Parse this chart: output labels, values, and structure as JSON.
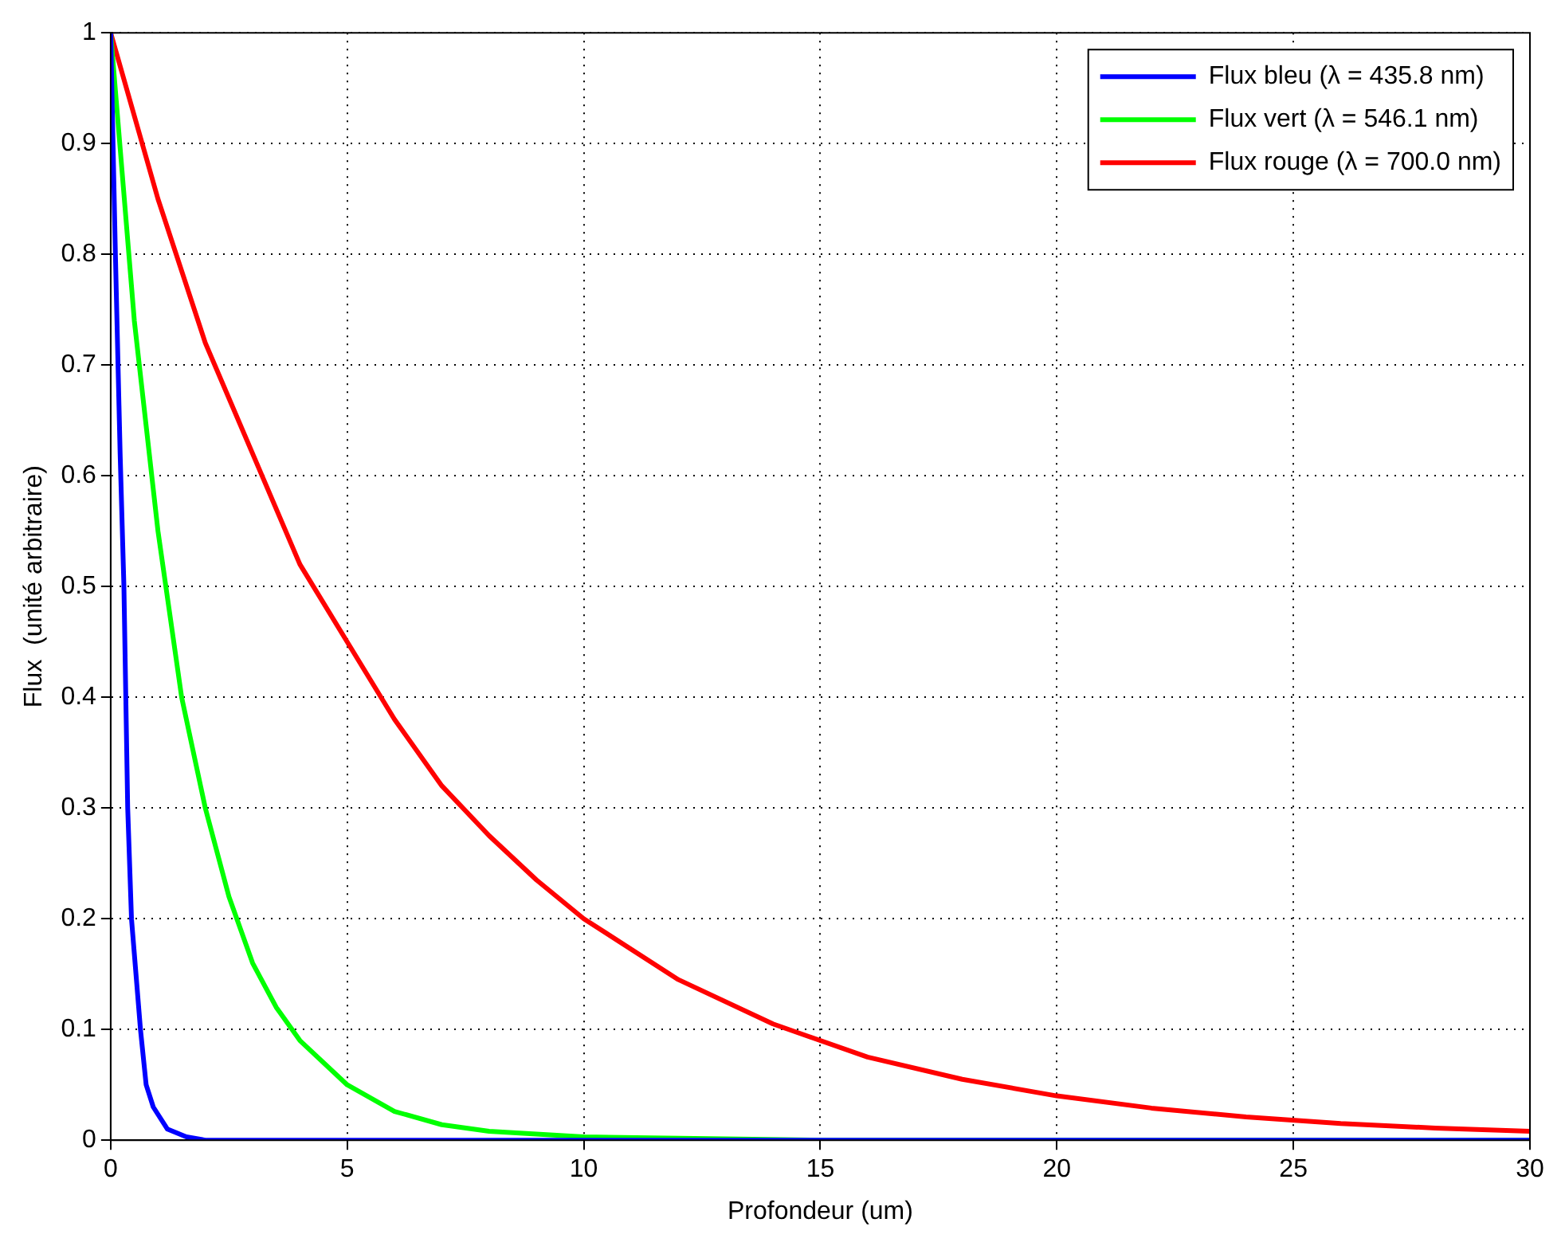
{
  "chart_data": {
    "type": "line",
    "xlabel": "Profondeur (um)",
    "ylabel": "Flux  (unité arbitraire)",
    "xlim": [
      0,
      30
    ],
    "xticks": [
      0,
      5,
      10,
      15,
      20,
      25,
      30
    ],
    "ylim": [
      0,
      1
    ],
    "yticks": [
      0,
      0.1,
      0.2,
      0.3,
      0.4,
      0.5,
      0.6,
      0.7,
      0.8,
      0.9,
      1
    ],
    "grid": true,
    "line_style": "solid",
    "marker": "none",
    "legend": "top right",
    "series": [
      {
        "name": "Flux bleu (λ = 435.8 nm)",
        "color": "#0000ff",
        "x": [
          0,
          0.1,
          0.2,
          0.28,
          0.36,
          0.44,
          0.63,
          0.75,
          0.9,
          1.2,
          1.6,
          2,
          10,
          30
        ],
        "values": [
          1,
          0.8,
          0.62,
          0.5,
          0.3,
          0.2,
          0.1,
          0.05,
          0.03,
          0.01,
          0.003,
          0,
          0,
          0
        ]
      },
      {
        "name": "Flux vert (λ = 546.1 nm)",
        "color": "#00ff00",
        "x": [
          0,
          0.5,
          1,
          1.5,
          2,
          2.5,
          3,
          3.5,
          4,
          5,
          6,
          7,
          8,
          10,
          15,
          30
        ],
        "values": [
          1,
          0.74,
          0.55,
          0.4,
          0.3,
          0.22,
          0.16,
          0.12,
          0.09,
          0.05,
          0.026,
          0.014,
          0.008,
          0.003,
          0,
          0
        ]
      },
      {
        "name": "Flux rouge (λ = 700.0 nm)",
        "color": "#ff0000",
        "x": [
          0,
          1,
          2,
          3,
          4,
          5,
          6,
          7,
          8,
          9,
          10,
          12,
          14,
          16,
          18,
          20,
          22,
          24,
          26,
          28,
          30
        ],
        "values": [
          1,
          0.85,
          0.72,
          0.62,
          0.52,
          0.45,
          0.38,
          0.32,
          0.275,
          0.235,
          0.2,
          0.145,
          0.105,
          0.075,
          0.055,
          0.04,
          0.029,
          0.021,
          0.015,
          0.011,
          0.008
        ]
      }
    ]
  }
}
